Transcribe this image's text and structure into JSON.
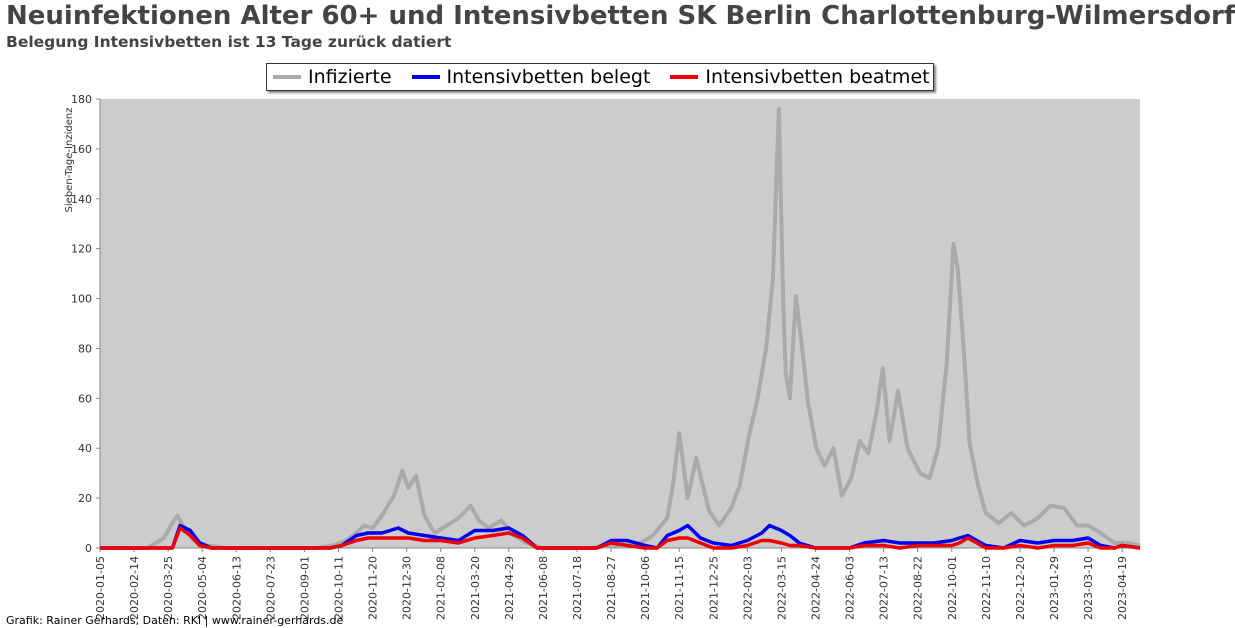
{
  "header": {
    "title": "Neuinfektionen Alter 60+ und Intensivbetten SK Berlin Charlottenburg-Wilmersdorf",
    "subtitle": "Belegung Intensivbetten ist 13 Tage zurück datiert"
  },
  "footer": {
    "credit": "Grafik: Rainer Gerhards, Daten: RKI | www.rainer-gerhards.de"
  },
  "colors": {
    "plot_background": "#cccccc",
    "infizierte": "#aaaaaa",
    "belegt": "#0000ee",
    "beatmet": "#ee0000"
  },
  "chart_data": {
    "type": "line",
    "title": "Neuinfektionen Alter 60+ und Intensivbetten SK Berlin Charlottenburg-Wilmersdorf",
    "subtitle": "Belegung Intensivbetten ist 13 Tage zurück datiert",
    "xlabel": "",
    "ylabel": "Sieben-Tage-Inzidenz",
    "ylim": [
      0,
      180
    ],
    "xlim": [
      "2020-01-05",
      "2023-05-10"
    ],
    "y_ticks": [
      0,
      20,
      40,
      60,
      80,
      100,
      120,
      140,
      160,
      180
    ],
    "x_ticks": [
      "2020-01-05",
      "2020-02-14",
      "2020-03-25",
      "2020-05-04",
      "2020-06-13",
      "2020-07-23",
      "2020-09-01",
      "2020-10-11",
      "2020-11-20",
      "2020-12-30",
      "2021-02-08",
      "2021-03-20",
      "2021-04-29",
      "2021-06-08",
      "2021-07-18",
      "2021-08-27",
      "2021-10-06",
      "2021-11-15",
      "2021-12-25",
      "2022-02-03",
      "2022-03-15",
      "2022-04-24",
      "2022-06-03",
      "2022-07-13",
      "2022-08-22",
      "2022-10-01",
      "2022-11-10",
      "2022-12-20",
      "2023-01-29",
      "2023-03-10",
      "2023-04-19"
    ],
    "grid": false,
    "legend_position": "top",
    "series": [
      {
        "name": "Infizierte",
        "x": [
          "2020-01-05",
          "2020-03-01",
          "2020-03-20",
          "2020-03-28",
          "2020-04-05",
          "2020-04-15",
          "2020-04-25",
          "2020-05-10",
          "2020-06-01",
          "2020-08-01",
          "2020-09-15",
          "2020-10-05",
          "2020-10-20",
          "2020-11-01",
          "2020-11-10",
          "2020-11-20",
          "2020-12-01",
          "2020-12-15",
          "2020-12-25",
          "2021-01-01",
          "2021-01-10",
          "2021-01-20",
          "2021-02-01",
          "2021-02-15",
          "2021-03-01",
          "2021-03-15",
          "2021-03-25",
          "2021-04-05",
          "2021-04-20",
          "2021-05-05",
          "2021-05-20",
          "2021-06-08",
          "2021-08-01",
          "2021-09-01",
          "2021-10-01",
          "2021-10-15",
          "2021-11-01",
          "2021-11-08",
          "2021-11-15",
          "2021-11-25",
          "2021-12-05",
          "2021-12-20",
          "2022-01-01",
          "2022-01-15",
          "2022-01-25",
          "2022-02-05",
          "2022-02-15",
          "2022-02-25",
          "2022-03-05",
          "2022-03-12",
          "2022-03-17",
          "2022-03-20",
          "2022-03-25",
          "2022-04-01",
          "2022-04-08",
          "2022-04-15",
          "2022-04-25",
          "2022-05-05",
          "2022-05-15",
          "2022-05-25",
          "2022-06-05",
          "2022-06-15",
          "2022-06-25",
          "2022-07-05",
          "2022-07-12",
          "2022-07-20",
          "2022-07-30",
          "2022-08-10",
          "2022-08-25",
          "2022-09-05",
          "2022-09-15",
          "2022-09-25",
          "2022-10-03",
          "2022-10-08",
          "2022-10-15",
          "2022-10-22",
          "2022-11-01",
          "2022-11-10",
          "2022-11-25",
          "2022-12-10",
          "2022-12-25",
          "2023-01-10",
          "2023-01-25",
          "2023-02-10",
          "2023-02-25",
          "2023-03-10",
          "2023-03-25",
          "2023-04-10",
          "2023-04-25",
          "2023-05-10"
        ],
        "values": [
          0,
          0,
          4,
          9,
          13,
          7,
          3,
          1,
          0,
          0,
          0,
          1,
          3,
          6,
          9,
          8,
          13,
          21,
          31,
          24,
          29,
          13,
          6,
          9,
          12,
          17,
          11,
          8,
          11,
          5,
          2,
          0,
          0,
          1,
          2,
          5,
          12,
          26,
          46,
          20,
          36,
          15,
          9,
          16,
          25,
          45,
          60,
          80,
          108,
          176,
          100,
          70,
          60,
          101,
          81,
          59,
          40,
          33,
          40,
          21,
          28,
          43,
          38,
          55,
          72,
          43,
          63,
          40,
          30,
          28,
          40,
          74,
          122,
          112,
          80,
          42,
          25,
          14,
          10,
          14,
          9,
          12,
          17,
          16,
          9,
          9,
          6,
          2,
          2,
          1
        ]
      },
      {
        "name": "Intensivbetten belegt",
        "x": [
          "2020-01-05",
          "2020-03-30",
          "2020-04-08",
          "2020-04-20",
          "2020-05-01",
          "2020-05-15",
          "2020-06-13",
          "2020-07-01",
          "2020-09-01",
          "2020-10-01",
          "2020-10-15",
          "2020-11-01",
          "2020-11-15",
          "2020-12-01",
          "2020-12-20",
          "2021-01-01",
          "2021-01-20",
          "2021-02-08",
          "2021-03-01",
          "2021-03-20",
          "2021-04-10",
          "2021-04-29",
          "2021-05-15",
          "2021-06-01",
          "2021-08-10",
          "2021-08-27",
          "2021-09-15",
          "2021-10-06",
          "2021-10-20",
          "2021-11-01",
          "2021-11-15",
          "2021-11-25",
          "2021-12-10",
          "2021-12-25",
          "2022-01-15",
          "2022-02-03",
          "2022-02-20",
          "2022-03-01",
          "2022-03-15",
          "2022-03-25",
          "2022-04-05",
          "2022-04-24",
          "2022-06-03",
          "2022-06-20",
          "2022-07-13",
          "2022-08-01",
          "2022-08-22",
          "2022-09-10",
          "2022-10-01",
          "2022-10-10",
          "2022-10-20",
          "2022-11-10",
          "2022-12-01",
          "2022-12-20",
          "2023-01-10",
          "2023-01-29",
          "2023-02-20",
          "2023-03-10",
          "2023-03-25",
          "2023-04-10",
          "2023-04-19",
          "2023-05-10"
        ],
        "values": [
          0,
          0,
          9,
          7,
          2,
          0,
          0,
          0,
          0,
          0,
          1,
          5,
          6,
          6,
          8,
          6,
          5,
          4,
          3,
          7,
          7,
          8,
          5,
          0,
          0,
          3,
          3,
          1,
          0,
          5,
          7,
          9,
          4,
          2,
          1,
          3,
          6,
          9,
          7,
          5,
          2,
          0,
          0,
          2,
          3,
          2,
          2,
          2,
          3,
          4,
          5,
          1,
          0,
          3,
          2,
          3,
          3,
          4,
          1,
          0,
          1,
          0
        ]
      },
      {
        "name": "Intensivbetten beatmet",
        "x": [
          "2020-01-05",
          "2020-03-30",
          "2020-04-08",
          "2020-04-20",
          "2020-05-01",
          "2020-05-15",
          "2020-06-13",
          "2020-09-01",
          "2020-10-01",
          "2020-10-15",
          "2020-11-01",
          "2020-11-15",
          "2020-12-01",
          "2020-12-20",
          "2021-01-01",
          "2021-01-20",
          "2021-02-08",
          "2021-03-01",
          "2021-03-20",
          "2021-04-10",
          "2021-04-29",
          "2021-05-15",
          "2021-06-01",
          "2021-08-10",
          "2021-08-27",
          "2021-09-15",
          "2021-10-06",
          "2021-10-20",
          "2021-11-01",
          "2021-11-15",
          "2021-11-25",
          "2021-12-10",
          "2021-12-25",
          "2022-01-15",
          "2022-02-03",
          "2022-02-20",
          "2022-03-01",
          "2022-03-15",
          "2022-03-25",
          "2022-04-05",
          "2022-04-24",
          "2022-06-03",
          "2022-06-20",
          "2022-07-13",
          "2022-08-01",
          "2022-08-22",
          "2022-09-10",
          "2022-10-01",
          "2022-10-10",
          "2022-10-20",
          "2022-11-10",
          "2022-12-01",
          "2022-12-20",
          "2023-01-10",
          "2023-01-29",
          "2023-02-20",
          "2023-03-10",
          "2023-03-25",
          "2023-04-10",
          "2023-04-19",
          "2023-05-10"
        ],
        "values": [
          0,
          0,
          8,
          5,
          1,
          0,
          0,
          0,
          0,
          1,
          3,
          4,
          4,
          4,
          4,
          3,
          3,
          2,
          4,
          5,
          6,
          4,
          0,
          0,
          2,
          1,
          0,
          0,
          3,
          4,
          4,
          2,
          0,
          0,
          1,
          3,
          3,
          2,
          1,
          1,
          0,
          0,
          1,
          1,
          0,
          1,
          1,
          1,
          2,
          4,
          0,
          0,
          1,
          0,
          1,
          1,
          2,
          0,
          0,
          1,
          0
        ]
      }
    ]
  }
}
